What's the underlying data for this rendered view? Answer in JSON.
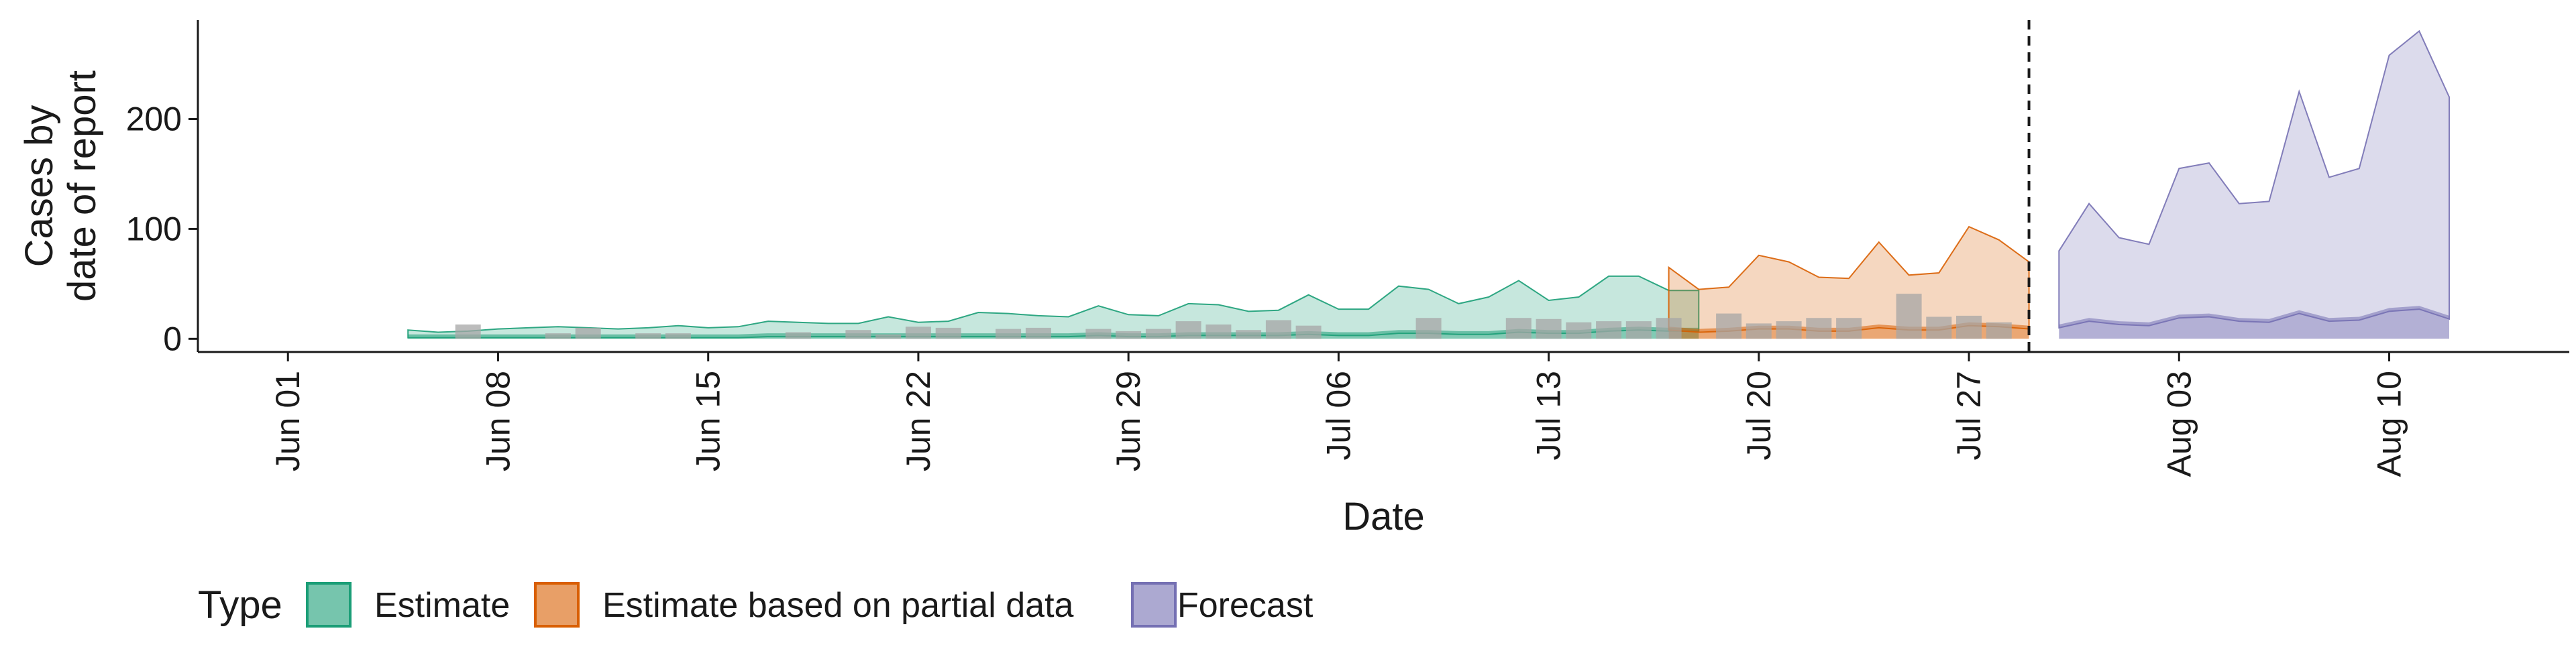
{
  "chart_data": {
    "type": "area",
    "xlabel": "Date",
    "ylabel_lines": [
      "Cases by",
      "date of report"
    ],
    "x_ticks": [
      "Jun 01",
      "Jun 08",
      "Jun 15",
      "Jun 22",
      "Jun 29",
      "Jul 06",
      "Jul 13",
      "Jul 20",
      "Jul 27",
      "Aug 03",
      "Aug 10"
    ],
    "y_ticks": [
      "0",
      "100",
      "200"
    ],
    "ylim": [
      -12,
      290
    ],
    "xlim": [
      "2020-05-29",
      "2020-08-16"
    ],
    "vline_date": "2020-07-29",
    "legend": {
      "title": "Type",
      "entries": [
        "Estimate",
        "Estimate based on partial data",
        "Forecast"
      ],
      "position": "bottom"
    },
    "colors": {
      "Estimate": "#1b9e77",
      "Estimate based on partial data": "#d95f02",
      "Forecast": "#7570b3",
      "bars": "#a6a6a6"
    },
    "series": [
      {
        "name": "Estimate",
        "start_date": "2020-06-05",
        "upper": [
          8,
          6,
          7,
          9,
          10,
          11,
          10,
          9,
          10,
          12,
          10,
          11,
          16,
          15,
          14,
          14,
          20,
          15,
          16,
          24,
          23,
          21,
          20,
          30,
          22,
          21,
          32,
          31,
          25,
          26,
          40,
          27,
          27,
          48,
          45,
          32,
          38,
          53,
          35,
          38,
          57,
          57,
          44,
          44
        ],
        "lower": [
          1,
          1,
          1,
          1,
          1,
          1,
          1,
          1,
          1,
          1,
          1,
          1,
          2,
          2,
          2,
          2,
          2,
          2,
          2,
          2,
          2,
          2,
          2,
          3,
          2,
          2,
          3,
          3,
          3,
          3,
          4,
          3,
          3,
          5,
          5,
          4,
          4,
          6,
          5,
          5,
          7,
          8,
          7,
          7
        ]
      },
      {
        "name": "Estimate based on partial data",
        "start_date": "2020-07-17",
        "upper": [
          65,
          45,
          47,
          76,
          70,
          56,
          55,
          88,
          58,
          60,
          102,
          90,
          70
        ],
        "lower": [
          8,
          6,
          7,
          9,
          9,
          7,
          7,
          10,
          8,
          8,
          12,
          11,
          9
        ]
      },
      {
        "name": "Forecast",
        "start_date": "2020-07-30",
        "upper": [
          80,
          123,
          92,
          86,
          155,
          160,
          123,
          125,
          225,
          147,
          155,
          258,
          280,
          220
        ],
        "lower": [
          10,
          16,
          13,
          12,
          19,
          20,
          16,
          15,
          23,
          16,
          17,
          25,
          27,
          18
        ]
      }
    ],
    "reported_cases": {
      "start_date": "2020-06-07",
      "values": [
        13,
        0,
        0,
        5,
        10,
        0,
        5,
        5,
        0,
        0,
        0,
        6,
        0,
        8,
        4,
        11,
        10,
        0,
        9,
        10,
        0,
        9,
        7,
        9,
        16,
        13,
        8,
        17,
        12,
        0,
        0,
        0,
        19,
        0,
        0,
        19,
        18,
        15,
        16,
        16,
        19,
        0,
        23,
        14,
        16,
        19,
        19,
        0,
        41,
        20,
        21,
        15
      ]
    }
  }
}
